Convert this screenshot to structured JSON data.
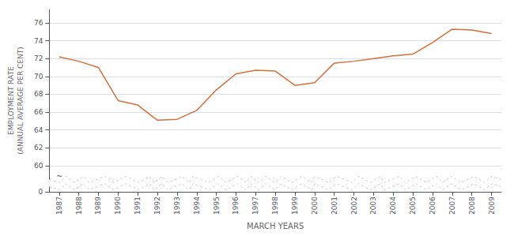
{
  "chart_data": {
    "type": "line",
    "xlabel": "MARCH YEARS",
    "ylabel": "EMPLOYMENT RATE\n(ANNUAL AVERAGE PER CENT)",
    "x": [
      1987,
      1988,
      1989,
      1990,
      1991,
      1992,
      1993,
      1994,
      1995,
      1996,
      1997,
      1998,
      1999,
      2000,
      2001,
      2002,
      2003,
      2004,
      2005,
      2006,
      2007,
      2008,
      2009
    ],
    "values": [
      72.2,
      71.7,
      71.0,
      67.3,
      66.8,
      65.1,
      65.2,
      66.2,
      68.5,
      70.3,
      70.7,
      70.6,
      69.0,
      69.3,
      71.5,
      71.7,
      72.0,
      72.3,
      72.5,
      73.8,
      75.3,
      75.2,
      74.8
    ],
    "color": "#d4703c",
    "xlim": [
      1986.5,
      2009.5
    ],
    "xticks": [
      1987,
      1988,
      1989,
      1990,
      1991,
      1992,
      1993,
      1994,
      1995,
      1996,
      1997,
      1998,
      1999,
      2000,
      2001,
      2002,
      2003,
      2004,
      2005,
      2006,
      2007,
      2008,
      2009
    ],
    "ylim": [
      0,
      77.5
    ],
    "yticks": [
      0,
      60,
      62,
      64,
      66,
      68,
      70,
      72,
      74,
      76
    ],
    "annotations": [
      {
        "text": "~",
        "x": 1986.65,
        "y": 58.8
      }
    ],
    "grid": true
  }
}
